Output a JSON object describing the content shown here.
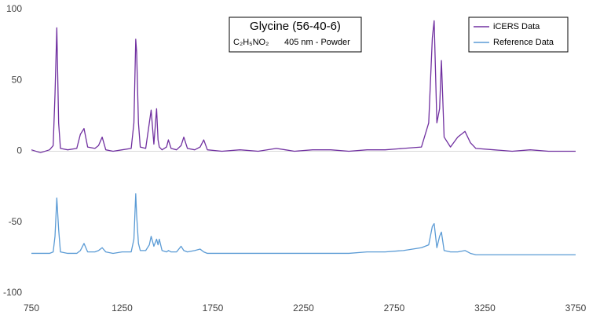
{
  "chart_data": {
    "type": "line",
    "title": "Glycine (56-40-6)",
    "formula": "C₂H₅NO₂",
    "subtitle": "405 nm - Powder",
    "legend": "top-right",
    "x": [
      750,
      800,
      850,
      870,
      880,
      890,
      900,
      910,
      950,
      1000,
      1020,
      1040,
      1060,
      1100,
      1120,
      1140,
      1160,
      1200,
      1250,
      1300,
      1315,
      1325,
      1330,
      1340,
      1350,
      1380,
      1400,
      1410,
      1425,
      1440,
      1448,
      1455,
      1470,
      1495,
      1505,
      1520,
      1550,
      1575,
      1590,
      1610,
      1650,
      1680,
      1700,
      1720,
      1800,
      1900,
      2000,
      2100,
      2150,
      2200,
      2300,
      2400,
      2500,
      2600,
      2700,
      2800,
      2900,
      2940,
      2960,
      2970,
      2985,
      3000,
      3010,
      3025,
      3060,
      3100,
      3140,
      3170,
      3200,
      3300,
      3400,
      3500,
      3600,
      3700,
      3750
    ],
    "series": [
      {
        "name": "iCERS Data",
        "color": "#7030a0",
        "values": [
          1,
          -1,
          1,
          4,
          40,
          87,
          20,
          2,
          1,
          2,
          12,
          16,
          3,
          2,
          4,
          10,
          1,
          0,
          1,
          2,
          20,
          79,
          70,
          20,
          3,
          2,
          20,
          29,
          5,
          30,
          8,
          3,
          1,
          3,
          8,
          2,
          1,
          4,
          10,
          2,
          1,
          3,
          8,
          1,
          0,
          1,
          0,
          2,
          1,
          0,
          1,
          1,
          0,
          1,
          1,
          2,
          3,
          20,
          80,
          92,
          20,
          30,
          64,
          10,
          3,
          10,
          14,
          6,
          2,
          1,
          0,
          1,
          0,
          0,
          0
        ]
      },
      {
        "name": "Reference Data",
        "color": "#5b9bd5",
        "values": [
          -72,
          -72,
          -72,
          -71,
          -60,
          -33,
          -55,
          -71,
          -72,
          -72,
          -70,
          -65,
          -71,
          -71,
          -70,
          -68,
          -71,
          -72,
          -71,
          -71,
          -62,
          -30,
          -45,
          -65,
          -70,
          -70,
          -66,
          -60,
          -67,
          -62,
          -66,
          -62,
          -70,
          -71,
          -70,
          -71,
          -71,
          -67,
          -70,
          -71,
          -70,
          -69,
          -71,
          -72,
          -72,
          -72,
          -72,
          -72,
          -72,
          -72,
          -72,
          -72,
          -72,
          -71,
          -71,
          -70,
          -68,
          -66,
          -53,
          -51,
          -68,
          -60,
          -57,
          -70,
          -71,
          -71,
          -70,
          -72,
          -73,
          -73,
          -73,
          -73,
          -73,
          -73,
          -73
        ]
      }
    ],
    "xlim": [
      750,
      3750
    ],
    "xticks": [
      750,
      1250,
      1750,
      2250,
      2750,
      3250,
      3750
    ],
    "ylim": [
      -100,
      100
    ],
    "yticks": [
      -100,
      -50,
      0,
      50,
      100
    ]
  }
}
